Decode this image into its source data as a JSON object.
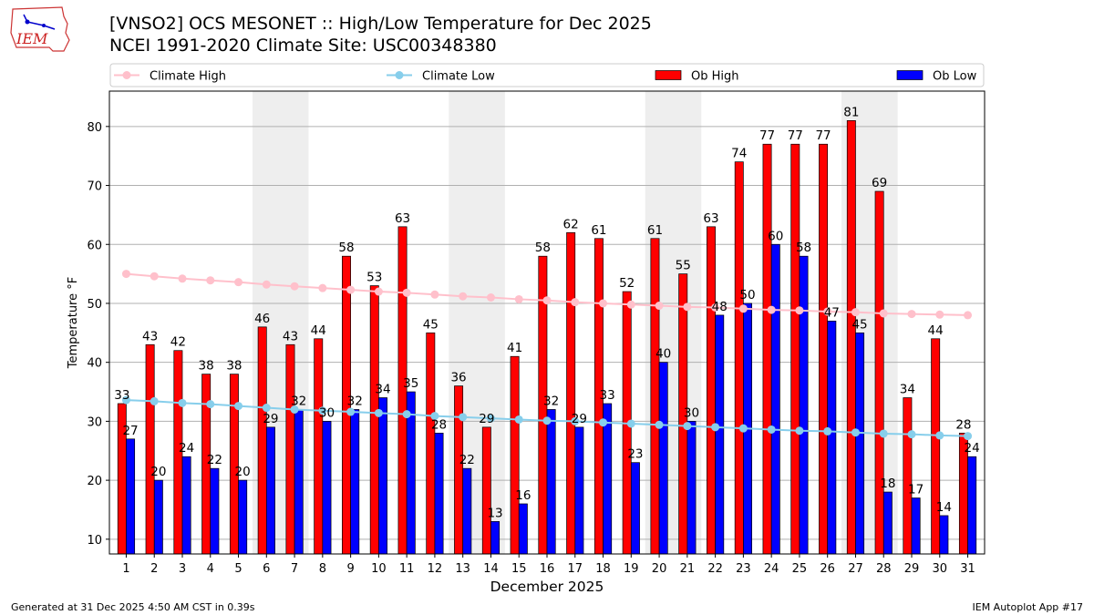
{
  "logo_text": "IEM",
  "title_line1": "[VNSO2] OCS MESONET :: High/Low Temperature for Dec 2025",
  "title_line2": "NCEI 1991-2020 Climate Site: USC00348380",
  "footer_left": "Generated at 31 Dec 2025 4:50 AM CST in 0.39s",
  "footer_right": "IEM Autoplot App #17",
  "colors": {
    "ob_high": "#ff0000",
    "ob_low": "#0000ff",
    "climate_high": "#ffc0cb",
    "climate_low": "#87ceeb",
    "weekend_shade": "#eeeeee",
    "grid": "#b0b0b0"
  },
  "chart_data": {
    "type": "bar",
    "xlabel": "December 2025",
    "ylabel": "Temperature °F",
    "ylim": [
      7.5,
      86
    ],
    "yticks": [
      10,
      20,
      30,
      40,
      50,
      60,
      70,
      80
    ],
    "grid": "horizontal",
    "legend_placement": "top",
    "categories": [
      "1",
      "2",
      "3",
      "4",
      "5",
      "6",
      "7",
      "8",
      "9",
      "10",
      "11",
      "12",
      "13",
      "14",
      "15",
      "16",
      "17",
      "18",
      "19",
      "20",
      "21",
      "22",
      "23",
      "24",
      "25",
      "26",
      "27",
      "28",
      "29",
      "30",
      "31"
    ],
    "shaded_days": [
      [
        "6",
        "7"
      ],
      [
        "13",
        "14"
      ],
      [
        "20",
        "21"
      ],
      [
        "27",
        "28"
      ]
    ],
    "series": [
      {
        "name": "Climate High",
        "kind": "line",
        "values": [
          55.0,
          54.6,
          54.2,
          53.9,
          53.6,
          53.2,
          52.9,
          52.6,
          52.3,
          52.0,
          51.8,
          51.5,
          51.2,
          51.0,
          50.7,
          50.5,
          50.2,
          50.0,
          49.8,
          49.6,
          49.4,
          49.3,
          49.1,
          48.9,
          48.8,
          48.6,
          48.5,
          48.3,
          48.2,
          48.1,
          48.0
        ]
      },
      {
        "name": "Climate Low",
        "kind": "line",
        "values": [
          33.6,
          33.4,
          33.1,
          32.9,
          32.6,
          32.3,
          32.0,
          31.8,
          31.6,
          31.4,
          31.2,
          30.9,
          30.7,
          30.5,
          30.3,
          30.1,
          30.0,
          29.8,
          29.6,
          29.4,
          29.2,
          29.0,
          28.8,
          28.6,
          28.4,
          28.3,
          28.1,
          27.9,
          27.8,
          27.6,
          27.5
        ]
      },
      {
        "name": "Ob High",
        "kind": "bar",
        "values": [
          33,
          43,
          42,
          38,
          38,
          46,
          43,
          44,
          58,
          53,
          63,
          45,
          36,
          29,
          41,
          58,
          62,
          61,
          52,
          61,
          55,
          63,
          74,
          77,
          77,
          77,
          81,
          69,
          34,
          44,
          28
        ]
      },
      {
        "name": "Ob Low",
        "kind": "bar",
        "values": [
          27,
          20,
          24,
          22,
          20,
          29,
          32,
          30,
          32,
          34,
          35,
          28,
          22,
          13,
          16,
          32,
          29,
          33,
          23,
          40,
          30,
          48,
          50,
          60,
          58,
          47,
          45,
          18,
          17,
          14,
          24
        ]
      }
    ]
  }
}
